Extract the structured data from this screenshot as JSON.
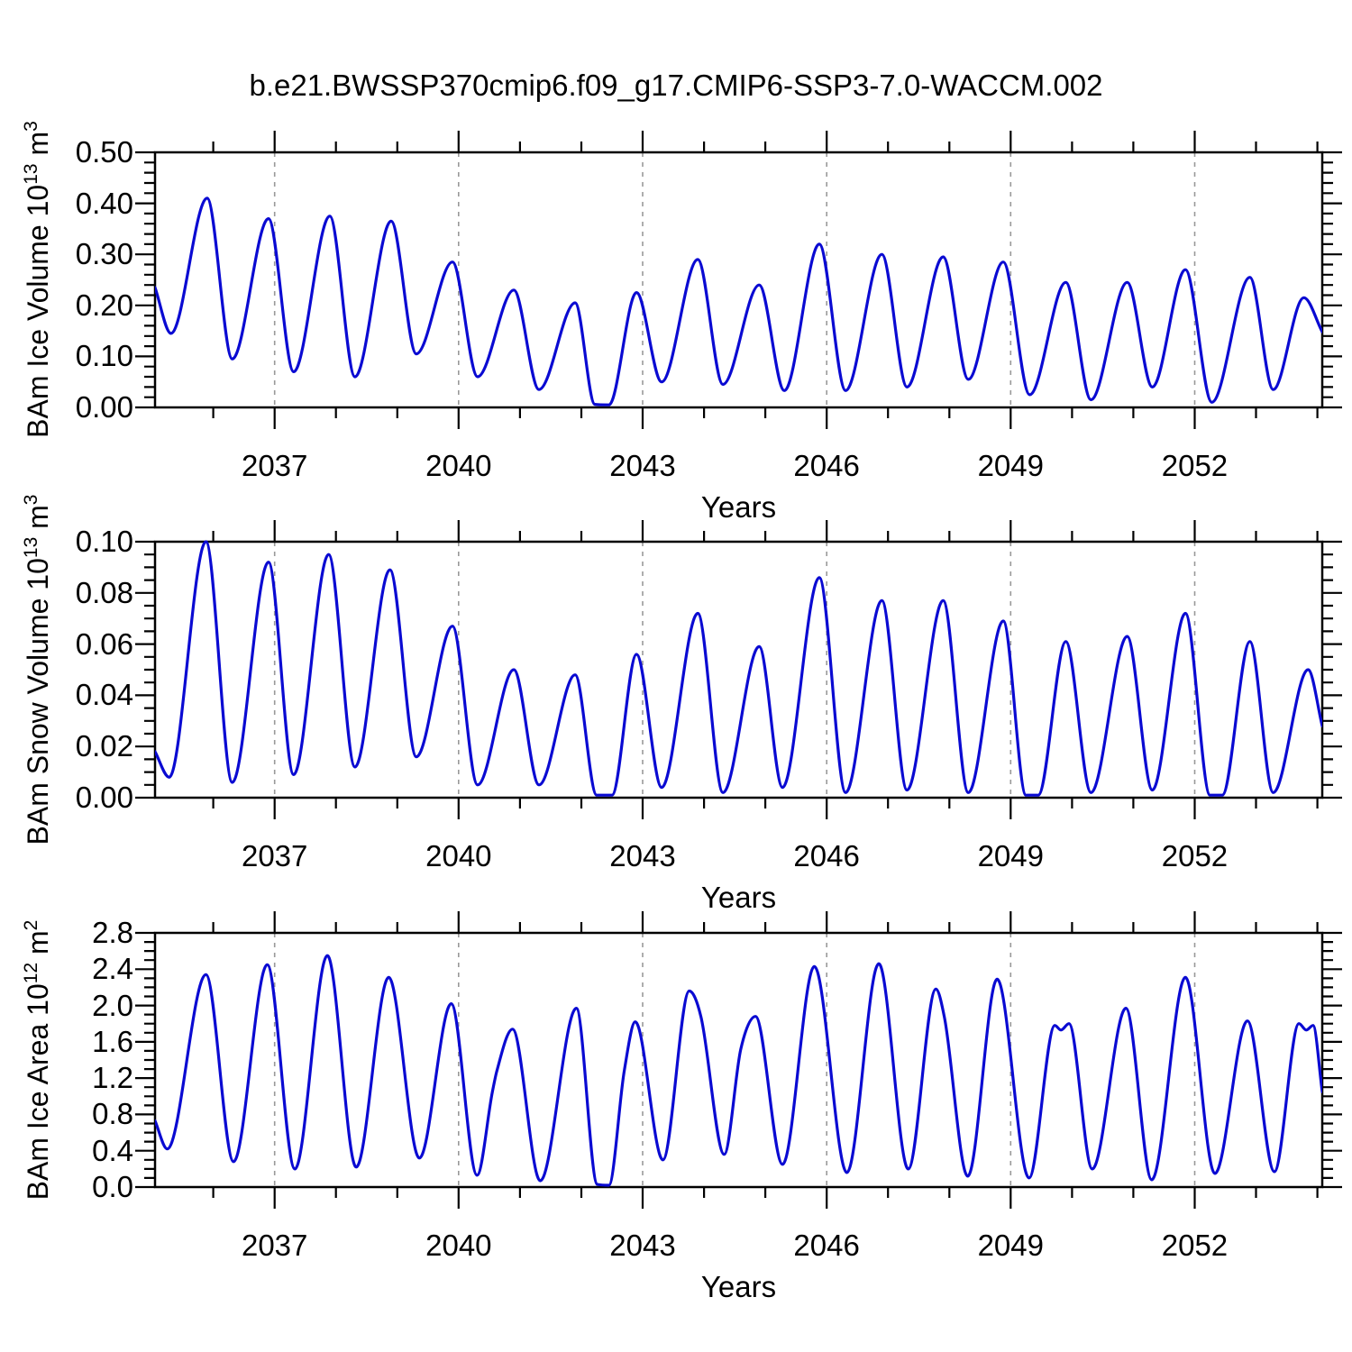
{
  "title": "b.e21.BWSSP370cmip6.f09_g17.CMIP6-SSP3-7.0-WACCM.002",
  "line_color": "#0a0ad2",
  "grid_color": "#999999",
  "axis_color": "#000000",
  "chart_data": [
    {
      "type": "line",
      "panel": "ice-volume",
      "ylabel": "BAm Ice Volume 10¹³ m³",
      "ylabel_parts": {
        "prefix": "BAm Ice Volume 10",
        "exp": "13",
        "unit": " m",
        "unit_exp": "3"
      },
      "xlabel": "Years",
      "xlim": [
        2035.05,
        2054.08
      ],
      "ylim": [
        0.0,
        0.5
      ],
      "xticks": [
        2037,
        2040,
        2043,
        2046,
        2049,
        2052
      ],
      "xtick_labels": [
        "2037",
        "2040",
        "2043",
        "2046",
        "2049",
        "2052"
      ],
      "x_minor_step": 1,
      "yticks": [
        0.0,
        0.1,
        0.2,
        0.3,
        0.4,
        0.5
      ],
      "ytick_labels": [
        "0.00",
        "0.10",
        "0.20",
        "0.30",
        "0.40",
        "0.50"
      ],
      "y_minor_step": 0.02,
      "grid": "vertical-dashed",
      "legend": "none",
      "series": [
        {
          "name": "BAm Ice Volume",
          "points": [
            [
              2035.05,
              0.235
            ],
            [
              2035.31,
              0.145
            ],
            [
              2035.9,
              0.41
            ],
            [
              2036.31,
              0.095
            ],
            [
              2036.9,
              0.37
            ],
            [
              2037.31,
              0.07
            ],
            [
              2037.9,
              0.375
            ],
            [
              2038.31,
              0.06
            ],
            [
              2038.9,
              0.365
            ],
            [
              2039.31,
              0.105
            ],
            [
              2039.9,
              0.285
            ],
            [
              2040.31,
              0.06
            ],
            [
              2040.9,
              0.23
            ],
            [
              2041.31,
              0.035
            ],
            [
              2041.9,
              0.205
            ],
            [
              2042.22,
              0.006
            ],
            [
              2042.45,
              0.005
            ],
            [
              2042.9,
              0.225
            ],
            [
              2043.31,
              0.05
            ],
            [
              2043.9,
              0.29
            ],
            [
              2044.31,
              0.045
            ],
            [
              2044.9,
              0.24
            ],
            [
              2045.31,
              0.033
            ],
            [
              2045.88,
              0.32
            ],
            [
              2046.31,
              0.033
            ],
            [
              2046.9,
              0.3
            ],
            [
              2047.31,
              0.04
            ],
            [
              2047.9,
              0.295
            ],
            [
              2048.31,
              0.055
            ],
            [
              2048.88,
              0.285
            ],
            [
              2049.31,
              0.025
            ],
            [
              2049.9,
              0.245
            ],
            [
              2050.31,
              0.015
            ],
            [
              2050.9,
              0.245
            ],
            [
              2051.31,
              0.04
            ],
            [
              2051.85,
              0.27
            ],
            [
              2052.28,
              0.01
            ],
            [
              2052.9,
              0.255
            ],
            [
              2053.28,
              0.035
            ],
            [
              2053.78,
              0.215
            ],
            [
              2054.08,
              0.148
            ]
          ]
        }
      ]
    },
    {
      "type": "line",
      "panel": "snow-volume",
      "ylabel": "BAm Snow Volume 10¹³ m³",
      "ylabel_parts": {
        "prefix": "BAm Snow Volume 10",
        "exp": "13",
        "unit": " m",
        "unit_exp": "3"
      },
      "xlabel": "Years",
      "xlim": [
        2035.05,
        2054.08
      ],
      "ylim": [
        0.0,
        0.1
      ],
      "xticks": [
        2037,
        2040,
        2043,
        2046,
        2049,
        2052
      ],
      "xtick_labels": [
        "2037",
        "2040",
        "2043",
        "2046",
        "2049",
        "2052"
      ],
      "x_minor_step": 1,
      "yticks": [
        0.0,
        0.02,
        0.04,
        0.06,
        0.08,
        0.1
      ],
      "ytick_labels": [
        "0.00",
        "0.02",
        "0.04",
        "0.06",
        "0.08",
        "0.10"
      ],
      "y_minor_step": 0.005,
      "grid": "vertical-dashed",
      "legend": "none",
      "series": [
        {
          "name": "BAm Snow Volume",
          "points": [
            [
              2035.05,
              0.018
            ],
            [
              2035.28,
              0.008
            ],
            [
              2035.88,
              0.1
            ],
            [
              2036.31,
              0.006
            ],
            [
              2036.9,
              0.092
            ],
            [
              2037.31,
              0.009
            ],
            [
              2037.88,
              0.095
            ],
            [
              2038.31,
              0.012
            ],
            [
              2038.88,
              0.089
            ],
            [
              2039.31,
              0.016
            ],
            [
              2039.9,
              0.067
            ],
            [
              2040.31,
              0.005
            ],
            [
              2040.9,
              0.05
            ],
            [
              2041.31,
              0.005
            ],
            [
              2041.9,
              0.048
            ],
            [
              2042.25,
              0.001
            ],
            [
              2042.5,
              0.001
            ],
            [
              2042.9,
              0.056
            ],
            [
              2043.31,
              0.004
            ],
            [
              2043.9,
              0.072
            ],
            [
              2044.31,
              0.002
            ],
            [
              2044.9,
              0.059
            ],
            [
              2045.28,
              0.004
            ],
            [
              2045.88,
              0.086
            ],
            [
              2046.31,
              0.002
            ],
            [
              2046.9,
              0.077
            ],
            [
              2047.31,
              0.003
            ],
            [
              2047.9,
              0.077
            ],
            [
              2048.31,
              0.002
            ],
            [
              2048.88,
              0.069
            ],
            [
              2049.25,
              0.001
            ],
            [
              2049.45,
              0.001
            ],
            [
              2049.9,
              0.061
            ],
            [
              2050.31,
              0.002
            ],
            [
              2050.9,
              0.063
            ],
            [
              2051.31,
              0.003
            ],
            [
              2051.85,
              0.072
            ],
            [
              2052.25,
              0.001
            ],
            [
              2052.45,
              0.001
            ],
            [
              2052.9,
              0.061
            ],
            [
              2053.28,
              0.002
            ],
            [
              2053.85,
              0.05
            ],
            [
              2054.08,
              0.028
            ]
          ]
        }
      ]
    },
    {
      "type": "line",
      "panel": "ice-area",
      "ylabel": "BAm Ice Area 10¹² m²",
      "ylabel_parts": {
        "prefix": "BAm Ice Area 10",
        "exp": "12",
        "unit": " m",
        "unit_exp": "2"
      },
      "xlabel": "Years",
      "xlim": [
        2035.05,
        2054.08
      ],
      "ylim": [
        0.0,
        2.8
      ],
      "xticks": [
        2037,
        2040,
        2043,
        2046,
        2049,
        2052
      ],
      "xtick_labels": [
        "2037",
        "2040",
        "2043",
        "2046",
        "2049",
        "2052"
      ],
      "x_minor_step": 1,
      "yticks": [
        0.0,
        0.4,
        0.8,
        1.2,
        1.6,
        2.0,
        2.4,
        2.8
      ],
      "ytick_labels": [
        "0.0",
        "0.4",
        "0.8",
        "1.2",
        "1.6",
        "2.0",
        "2.4",
        "2.8"
      ],
      "y_minor_step": 0.1,
      "grid": "vertical-dashed",
      "legend": "none",
      "series": [
        {
          "name": "BAm Ice Area",
          "points": [
            [
              2035.05,
              0.73
            ],
            [
              2035.25,
              0.42
            ],
            [
              2035.88,
              2.34
            ],
            [
              2036.33,
              0.28
            ],
            [
              2036.88,
              2.45
            ],
            [
              2037.33,
              0.2
            ],
            [
              2037.86,
              2.55
            ],
            [
              2038.33,
              0.22
            ],
            [
              2038.86,
              2.31
            ],
            [
              2039.36,
              0.32
            ],
            [
              2039.88,
              2.02
            ],
            [
              2040.3,
              0.13
            ],
            [
              2040.55,
              1.05
            ],
            [
              2040.62,
              1.27
            ],
            [
              2040.88,
              1.74
            ],
            [
              2041.33,
              0.07
            ],
            [
              2041.92,
              1.97
            ],
            [
              2042.26,
              0.03
            ],
            [
              2042.45,
              0.02
            ],
            [
              2042.7,
              1.28
            ],
            [
              2042.88,
              1.82
            ],
            [
              2043.33,
              0.3
            ],
            [
              2043.76,
              2.16
            ],
            [
              2043.95,
              1.88
            ],
            [
              2044.33,
              0.36
            ],
            [
              2044.6,
              1.52
            ],
            [
              2044.84,
              1.88
            ],
            [
              2045.28,
              0.25
            ],
            [
              2045.8,
              2.43
            ],
            [
              2046.33,
              0.16
            ],
            [
              2046.85,
              2.46
            ],
            [
              2047.33,
              0.2
            ],
            [
              2047.78,
              2.18
            ],
            [
              2047.92,
              1.87
            ],
            [
              2048.3,
              0.12
            ],
            [
              2048.78,
              2.29
            ],
            [
              2049.3,
              0.1
            ],
            [
              2049.72,
              1.78
            ],
            [
              2049.82,
              1.73
            ],
            [
              2049.95,
              1.8
            ],
            [
              2050.33,
              0.2
            ],
            [
              2050.88,
              1.97
            ],
            [
              2051.3,
              0.08
            ],
            [
              2051.85,
              2.31
            ],
            [
              2052.33,
              0.15
            ],
            [
              2052.86,
              1.83
            ],
            [
              2053.3,
              0.17
            ],
            [
              2053.7,
              1.8
            ],
            [
              2053.82,
              1.73
            ],
            [
              2053.93,
              1.78
            ],
            [
              2054.08,
              1.05
            ]
          ]
        }
      ]
    }
  ]
}
